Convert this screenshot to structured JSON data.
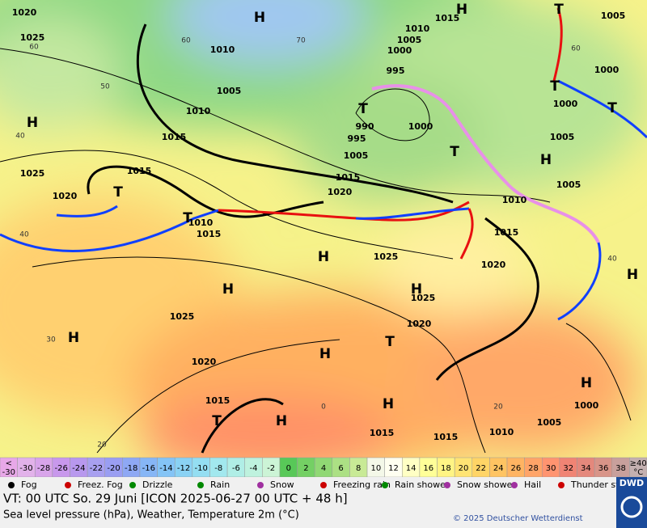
{
  "map": {
    "pressure_centers": [
      "H",
      "H",
      "H",
      "H",
      "H",
      "H",
      "H",
      "H",
      "H",
      "H",
      "H",
      "H",
      "H",
      "T",
      "T",
      "T",
      "T",
      "T",
      "T",
      "T",
      "T",
      "T"
    ],
    "isobar_labels": [
      1020,
      1025,
      1010,
      1015,
      1010,
      1005,
      1000,
      995,
      990,
      995,
      1000,
      1005,
      1005,
      1010,
      1015,
      1015,
      1025,
      1020,
      1015,
      1020,
      1010,
      1015,
      1025,
      1025,
      1020,
      1025,
      1020,
      1015,
      1015,
      1015,
      1010,
      1005,
      1000,
      1015,
      1020,
      1010,
      1005,
      1005,
      1000,
      1000,
      1005
    ],
    "temperature_labels": [
      60,
      50,
      40,
      40,
      30,
      20,
      60,
      70,
      20,
      60,
      40,
      0
    ]
  },
  "color_scale": [
    {
      "top": "<",
      "bottom": "-30",
      "color": "#e8a8e8"
    },
    {
      "label": -30,
      "color": "#e2b2ea"
    },
    {
      "label": -28,
      "color": "#d8a4ea"
    },
    {
      "label": -26,
      "color": "#c898ec"
    },
    {
      "label": -24,
      "color": "#b898ee"
    },
    {
      "label": -22,
      "color": "#a8a0f0"
    },
    {
      "label": -20,
      "color": "#9a9ef2"
    },
    {
      "label": -18,
      "color": "#8ea8f4"
    },
    {
      "label": -16,
      "color": "#86b6f6"
    },
    {
      "label": -14,
      "color": "#84c4f6"
    },
    {
      "label": -12,
      "color": "#8ad2f4"
    },
    {
      "label": -10,
      "color": "#94def2"
    },
    {
      "label": -8,
      "color": "#a2e8ee"
    },
    {
      "label": -6,
      "color": "#b0eee6"
    },
    {
      "label": -4,
      "color": "#bef2de"
    },
    {
      "label": -2,
      "color": "#ccf4d6"
    },
    {
      "label": 0,
      "color": "#58c858"
    },
    {
      "label": 2,
      "color": "#74d064"
    },
    {
      "label": 4,
      "color": "#90d874"
    },
    {
      "label": 6,
      "color": "#acE084"
    },
    {
      "label": 8,
      "color": "#c8ea96"
    },
    {
      "label": 10,
      "color": "#f4f8e8"
    },
    {
      "label": 12,
      "color": "#fffff0"
    },
    {
      "label": 14,
      "color": "#ffffc4"
    },
    {
      "label": 16,
      "color": "#ffff98"
    },
    {
      "label": 18,
      "color": "#fff484"
    },
    {
      "label": 20,
      "color": "#ffe474"
    },
    {
      "label": 22,
      "color": "#ffd466"
    },
    {
      "label": 24,
      "color": "#ffc462"
    },
    {
      "label": 26,
      "color": "#ffb462"
    },
    {
      "label": 28,
      "color": "#ffa468"
    },
    {
      "label": 30,
      "color": "#ff9470"
    },
    {
      "label": 32,
      "color": "#f08474"
    },
    {
      "label": 34,
      "color": "#e4887c"
    },
    {
      "label": 36,
      "color": "#d89488"
    },
    {
      "label": 38,
      "color": "#c8a09c"
    },
    {
      "top": "≥40",
      "bottom": "°C",
      "color": "#c4b0b0"
    }
  ],
  "weather_legend": [
    "Fog",
    "Freez. Fog",
    "Drizzle",
    "Rain",
    "Snow",
    "Freezing rain",
    "Rain shower",
    "Snow shower",
    "Hail",
    "Thunder storm"
  ],
  "footer": {
    "valid_time": "VT: 00 UTC So.  29 Juni [ICON 2025-06-27  00 UTC + 48 h]",
    "description": "Sea level pressure (hPa), Weather, Temperature 2m (°C)",
    "copyright": "© 2025 Deutscher Wetterdienst",
    "logo": "DWD"
  }
}
